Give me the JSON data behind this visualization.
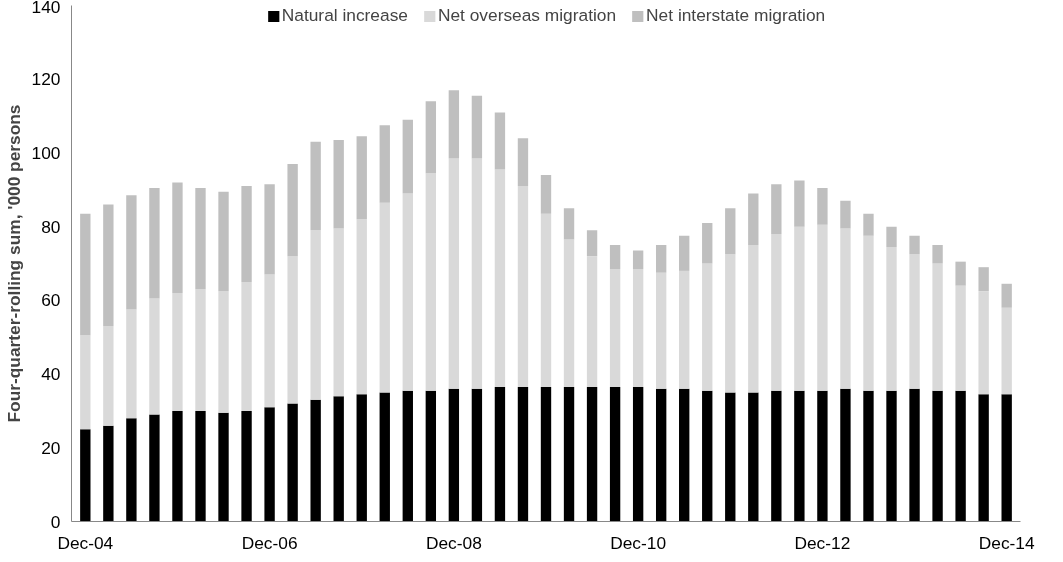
{
  "chart_data": {
    "type": "bar",
    "stacked": true,
    "ylabel": "Four-quarter-rolling sum, '000 persons",
    "categories": [
      "Dec-04",
      null,
      null,
      null,
      null,
      null,
      null,
      null,
      "Dec-06",
      null,
      null,
      null,
      null,
      null,
      null,
      null,
      "Dec-08",
      null,
      null,
      null,
      null,
      null,
      null,
      null,
      "Dec-10",
      null,
      null,
      null,
      null,
      null,
      null,
      null,
      "Dec-12",
      null,
      null,
      null,
      null,
      null,
      null,
      null,
      "Dec-14"
    ],
    "series": [
      {
        "name": "Natural increase",
        "color": "#000000",
        "values": [
          25,
          26,
          28,
          29,
          30,
          30,
          29.5,
          30,
          31,
          32,
          33,
          34,
          34.5,
          35,
          35.5,
          35.5,
          36,
          36,
          36.5,
          36.5,
          36.5,
          36.5,
          36.5,
          36.5,
          36.5,
          36,
          36,
          35.5,
          35,
          35,
          35.5,
          35.5,
          35.5,
          36,
          35.5,
          35.5,
          36,
          35.5,
          35.5,
          34.5,
          34.5
        ]
      },
      {
        "name": "Net overseas migration",
        "color": "#d9d9d9",
        "values": [
          25.5,
          27,
          29.5,
          31.5,
          32,
          33,
          33,
          35,
          36,
          40,
          46,
          45.5,
          47.5,
          51.5,
          53.5,
          59,
          62.5,
          62.5,
          59,
          54.5,
          47,
          40,
          35.5,
          32,
          32,
          31.5,
          32,
          34.5,
          37.5,
          40,
          42.5,
          44.5,
          45,
          43.5,
          42,
          39,
          36.5,
          34.5,
          28.5,
          28,
          23.5
        ]
      },
      {
        "name": "Net interstate migration",
        "color": "#bfbfbf",
        "values": [
          33,
          33,
          31,
          30,
          30,
          27.5,
          27,
          26,
          24.5,
          25,
          24,
          24,
          22.5,
          21,
          20,
          19.5,
          18.5,
          17,
          15.5,
          13,
          10.5,
          8.5,
          7,
          6.5,
          5,
          7.5,
          9.5,
          11,
          12.5,
          14,
          13.5,
          12.5,
          10,
          7.5,
          6,
          5.5,
          5,
          5,
          6.5,
          6.5,
          6.5
        ]
      }
    ],
    "ylim": [
      0,
      140
    ],
    "yticks": [
      0,
      20,
      40,
      60,
      80,
      100,
      120,
      140
    ],
    "grid": false,
    "legend": "top"
  }
}
